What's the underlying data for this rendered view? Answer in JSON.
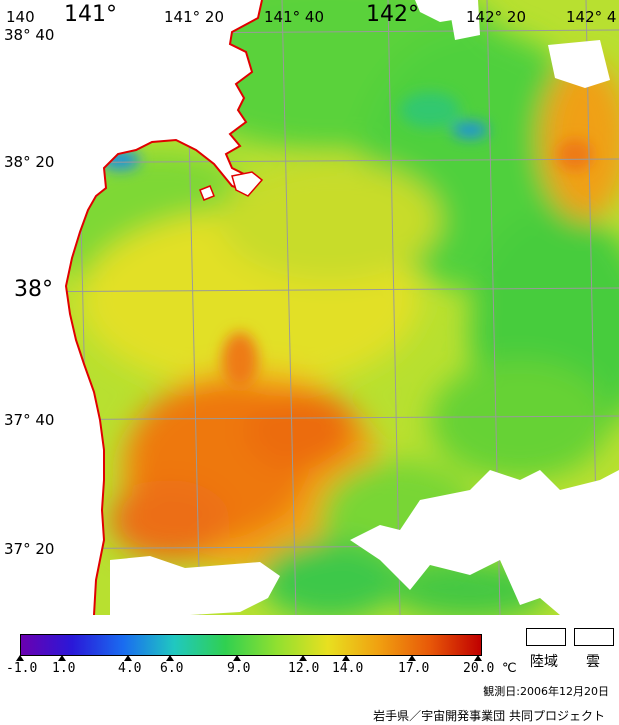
{
  "map": {
    "lon_labels": [
      "140",
      "141°",
      "141° 20",
      "141° 40",
      "142°",
      "142° 20",
      "142° 4"
    ],
    "lat_labels": [
      "38° 40",
      "38° 20",
      "38°",
      "37° 40",
      "37° 20"
    ],
    "coast_color": "#e00000",
    "land_color": "#ffffff",
    "grid_color": "#9a9a9a"
  },
  "legend": {
    "colorbar_colors": [
      "#6a00b0",
      "#2a18d8",
      "#1a6cf0",
      "#20c8c0",
      "#30d050",
      "#90e030",
      "#e8e020",
      "#f0a010",
      "#e85808",
      "#c00000"
    ],
    "ticks": [
      "-1.0",
      "1.0",
      "4.0",
      "6.0",
      "9.0",
      "12.0",
      "14.0",
      "17.0",
      "20.0"
    ],
    "unit": "℃",
    "land_label": "陸域",
    "cloud_label": "雲",
    "date": "観測日:2006年12月20日",
    "credit": "岩手県／宇宙開発事業団 共同プロジェクト"
  }
}
